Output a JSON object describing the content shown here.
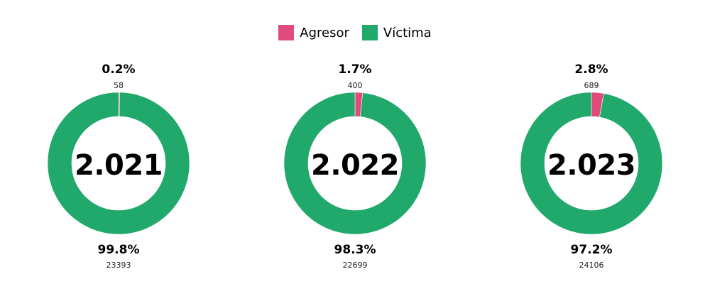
{
  "legend": {
    "agresor_label": "Agresor",
    "victima_label": "Víctima",
    "agresor_color": "#e24a7b",
    "victima_color": "#20a96b"
  },
  "chart_data": [
    {
      "type": "pie",
      "center_label": "2.021",
      "slices": [
        {
          "name": "Agresor",
          "value": 58,
          "percent_label": "0.2%",
          "count_label": "58"
        },
        {
          "name": "Víctima",
          "value": 23393,
          "percent_label": "99.8%",
          "count_label": "23393"
        }
      ]
    },
    {
      "type": "pie",
      "center_label": "2.022",
      "slices": [
        {
          "name": "Agresor",
          "value": 400,
          "percent_label": "1.7%",
          "count_label": "400"
        },
        {
          "name": "Víctima",
          "value": 22699,
          "percent_label": "98.3%",
          "count_label": "22699"
        }
      ]
    },
    {
      "type": "pie",
      "center_label": "2.023",
      "slices": [
        {
          "name": "Agresor",
          "value": 689,
          "percent_label": "2.8%",
          "count_label": "689"
        },
        {
          "name": "Víctima",
          "value": 24106,
          "percent_label": "97.2%",
          "count_label": "24106"
        }
      ]
    }
  ]
}
